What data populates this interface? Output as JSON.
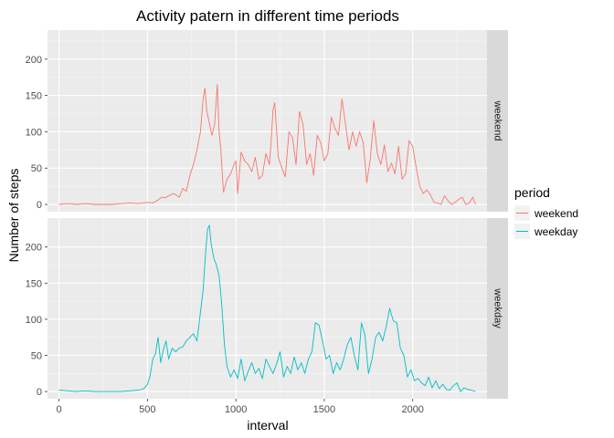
{
  "chart_data": {
    "type": "line",
    "title": "Activity patern in different time periods",
    "xlabel": "interval",
    "ylabel": "Number of steps",
    "x_ticks": [
      0,
      500,
      1000,
      1500,
      2000
    ],
    "y_ticks": [
      0,
      50,
      100,
      150,
      200
    ],
    "xlim": [
      -65,
      2420
    ],
    "ylim": [
      -10,
      240
    ],
    "grid": true,
    "legend": {
      "title": "period",
      "placement": "right"
    },
    "facets": [
      "weekend",
      "weekday"
    ],
    "series": [
      {
        "name": "weekend",
        "color": "#F8766D",
        "x": [
          0,
          50,
          100,
          150,
          200,
          250,
          300,
          350,
          400,
          450,
          500,
          530,
          560,
          580,
          600,
          620,
          650,
          680,
          700,
          720,
          740,
          760,
          780,
          800,
          815,
          825,
          835,
          850,
          865,
          880,
          895,
          905,
          915,
          930,
          950,
          970,
          990,
          1000,
          1010,
          1030,
          1050,
          1070,
          1090,
          1110,
          1130,
          1150,
          1170,
          1190,
          1200,
          1210,
          1220,
          1240,
          1260,
          1280,
          1300,
          1320,
          1340,
          1360,
          1380,
          1400,
          1420,
          1440,
          1460,
          1480,
          1500,
          1520,
          1540,
          1560,
          1580,
          1600,
          1620,
          1640,
          1660,
          1680,
          1700,
          1720,
          1740,
          1760,
          1780,
          1800,
          1820,
          1840,
          1860,
          1880,
          1900,
          1920,
          1940,
          1960,
          1980,
          2000,
          2020,
          2040,
          2060,
          2080,
          2100,
          2120,
          2140,
          2160,
          2180,
          2200,
          2220,
          2240,
          2260,
          2280,
          2300,
          2320,
          2340,
          2355
        ],
        "y": [
          0,
          1,
          0,
          1,
          0,
          0,
          0,
          1,
          2,
          1,
          3,
          2,
          6,
          10,
          9,
          12,
          15,
          10,
          22,
          18,
          40,
          55,
          75,
          100,
          145,
          160,
          130,
          112,
          95,
          110,
          165,
          100,
          75,
          17,
          35,
          42,
          55,
          60,
          15,
          72,
          60,
          55,
          45,
          65,
          35,
          40,
          70,
          55,
          90,
          130,
          140,
          65,
          50,
          38,
          100,
          92,
          55,
          128,
          110,
          55,
          70,
          40,
          95,
          85,
          60,
          70,
          120,
          105,
          95,
          145,
          110,
          75,
          100,
          80,
          100,
          85,
          30,
          62,
          115,
          70,
          55,
          82,
          45,
          57,
          42,
          80,
          35,
          42,
          88,
          80,
          50,
          25,
          15,
          20,
          13,
          3,
          2,
          0,
          12,
          5,
          0,
          3,
          7,
          10,
          0,
          2,
          10,
          0
        ]
      },
      {
        "name": "weekday",
        "color": "#00BFC4",
        "x": [
          0,
          50,
          100,
          150,
          200,
          250,
          300,
          350,
          400,
          450,
          480,
          500,
          515,
          530,
          545,
          560,
          575,
          590,
          605,
          620,
          640,
          660,
          680,
          700,
          720,
          740,
          760,
          780,
          800,
          815,
          830,
          840,
          850,
          860,
          875,
          890,
          905,
          920,
          935,
          950,
          970,
          990,
          1010,
          1030,
          1050,
          1070,
          1090,
          1110,
          1130,
          1150,
          1170,
          1190,
          1210,
          1230,
          1250,
          1270,
          1290,
          1310,
          1330,
          1350,
          1370,
          1390,
          1410,
          1430,
          1450,
          1470,
          1490,
          1510,
          1530,
          1550,
          1570,
          1590,
          1610,
          1630,
          1650,
          1670,
          1690,
          1710,
          1730,
          1750,
          1770,
          1790,
          1810,
          1830,
          1850,
          1870,
          1890,
          1910,
          1930,
          1950,
          1970,
          1990,
          2010,
          2030,
          2050,
          2070,
          2090,
          2110,
          2130,
          2150,
          2170,
          2190,
          2210,
          2230,
          2250,
          2270,
          2290,
          2310,
          2330,
          2355
        ],
        "y": [
          2,
          1,
          0,
          1,
          0,
          0,
          0,
          0,
          1,
          2,
          4,
          10,
          22,
          45,
          52,
          75,
          40,
          58,
          70,
          45,
          60,
          55,
          60,
          62,
          70,
          75,
          80,
          70,
          110,
          140,
          195,
          225,
          230,
          205,
          185,
          175,
          160,
          120,
          65,
          35,
          20,
          30,
          18,
          45,
          15,
          28,
          40,
          25,
          32,
          18,
          45,
          35,
          25,
          38,
          55,
          20,
          35,
          25,
          48,
          30,
          40,
          25,
          45,
          55,
          95,
          92,
          70,
          45,
          50,
          25,
          40,
          30,
          45,
          65,
          75,
          50,
          30,
          95,
          78,
          25,
          45,
          75,
          82,
          70,
          90,
          115,
          98,
          95,
          60,
          50,
          20,
          30,
          15,
          18,
          12,
          8,
          20,
          5,
          15,
          4,
          10,
          3,
          2,
          8,
          12,
          0,
          5,
          3,
          2,
          0
        ]
      }
    ]
  }
}
